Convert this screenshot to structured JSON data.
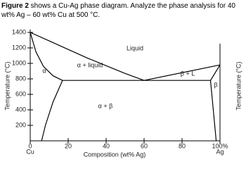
{
  "caption": {
    "lead": "Figure 2",
    "text": " shows a Cu-Ag phase diagram. Analyze the phase analysis for 40 wt% Ag – 60 wt% Cu at 500 °C."
  },
  "chart_data": {
    "type": "line",
    "xlabel": "Composition (wt% Ag)",
    "ylabel": "Temperature (°C)",
    "y2label": "Temperature (°C)",
    "x_left_label": "Cu",
    "x_right_label": "Ag",
    "regions": [
      "Liquid",
      "α + liquid",
      "α",
      "α + β",
      "β + L",
      "β"
    ],
    "xlim": [
      0,
      100
    ],
    "ylim": [
      0,
      1400
    ],
    "xticks": [
      0,
      20,
      40,
      60,
      80,
      {
        "value": 100,
        "label": "100%"
      }
    ],
    "yticks": [
      200,
      400,
      600,
      800,
      1000,
      1200,
      1400
    ],
    "color": "#000000",
    "series": [
      {
        "x": [
          0,
          10,
          20,
          30,
          40,
          50,
          60
        ],
        "values": [
          1400,
          1290,
          1180,
          1070,
          970,
          870,
          780
        ]
      },
      {
        "x": [
          60,
          100
        ],
        "values": [
          780,
          980
        ]
      },
      {
        "x": [
          0,
          3,
          7,
          12,
          17
        ],
        "values": [
          1400,
          1150,
          960,
          840,
          780
        ]
      },
      {
        "x": [
          17,
          95
        ],
        "values": [
          780,
          780
        ]
      },
      {
        "x": [
          17,
          12,
          8,
          6
        ],
        "values": [
          780,
          500,
          200,
          0
        ]
      },
      {
        "x": [
          95,
          100
        ],
        "values": [
          780,
          980
        ]
      },
      {
        "x": [
          95,
          98
        ],
        "values": [
          780,
          0
        ]
      }
    ]
  }
}
